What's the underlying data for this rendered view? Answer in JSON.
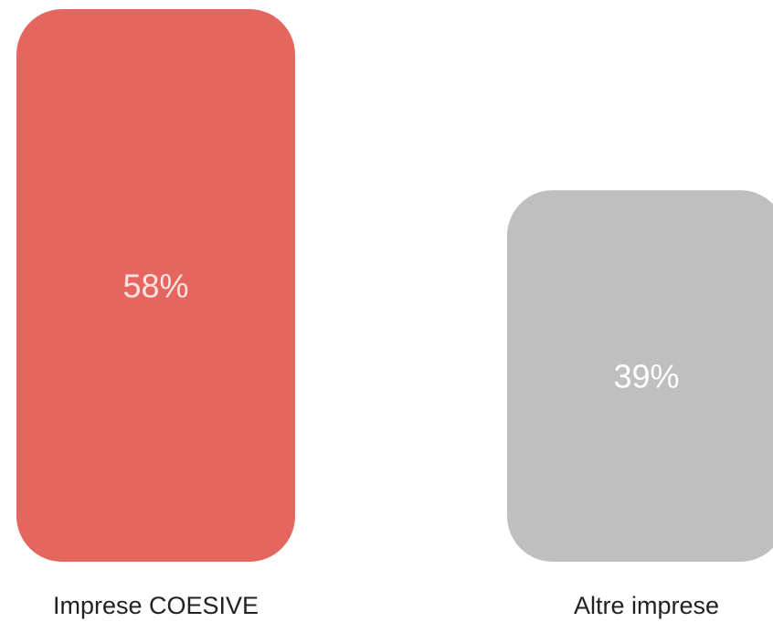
{
  "chart_data": {
    "type": "bar",
    "categories": [
      "Imprese COESIVE",
      "Altre imprese"
    ],
    "values": [
      58,
      39
    ],
    "value_labels": [
      "58%",
      "39%"
    ],
    "unit": "%",
    "colors": [
      "#e5665e",
      "#bfbfbf"
    ],
    "value_label_colors": [
      "#fbe3e1",
      "#ffffff"
    ],
    "title": "",
    "xlabel": "",
    "ylabel": "",
    "ylim": [
      0,
      58
    ],
    "grid": false,
    "legend": "none"
  }
}
